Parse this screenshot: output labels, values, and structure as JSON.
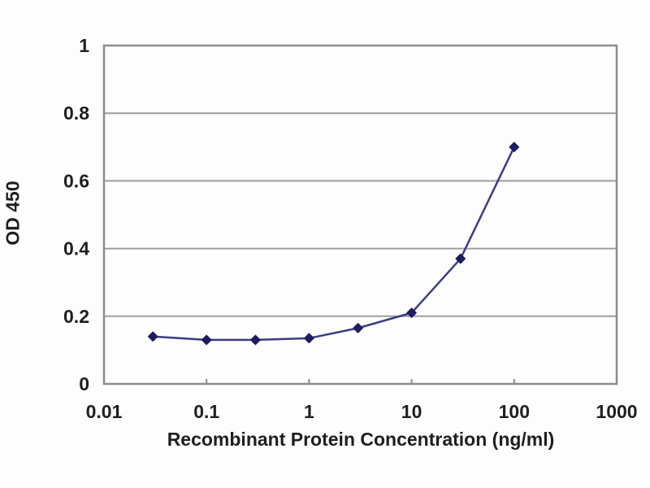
{
  "chart_data": {
    "type": "line",
    "x": [
      0.03,
      0.1,
      0.3,
      1,
      3,
      10,
      30,
      100
    ],
    "series": [
      {
        "name": "OD 450",
        "values": [
          0.14,
          0.13,
          0.13,
          0.135,
          0.165,
          0.21,
          0.37,
          0.7
        ]
      }
    ],
    "title": "",
    "xlabel": "Recombinant Protein Concentration (ng/ml)",
    "ylabel": "OD 450",
    "xscale": "log",
    "xlim": [
      0.01,
      1000
    ],
    "ylim": [
      0,
      1
    ],
    "x_ticks": [
      0.01,
      0.1,
      1,
      10,
      100,
      1000
    ],
    "x_tick_labels": [
      "0.01",
      "0.1",
      "1",
      "10",
      "100",
      "1000"
    ],
    "y_ticks": [
      0,
      0.2,
      0.4,
      0.6,
      0.8,
      1
    ],
    "y_tick_labels": [
      "0",
      "0.2",
      "0.4",
      "0.6",
      "0.8",
      "1"
    ],
    "grid": "horizontal",
    "legend": false,
    "marker_shape": "diamond",
    "colors": {
      "line": "#3c3c86",
      "marker": "#1e1b5e",
      "grid": "#9d9d9d",
      "border": "#8c8c8c",
      "text": "#1f1f1f",
      "background": "#fdfdfd"
    }
  }
}
